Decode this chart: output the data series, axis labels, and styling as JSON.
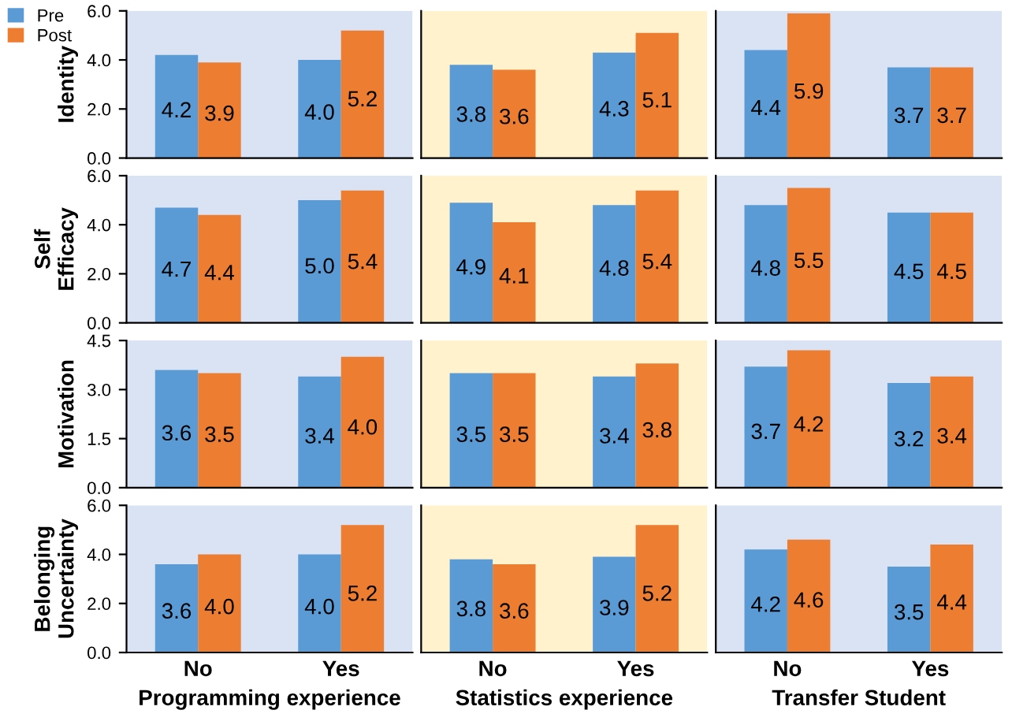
{
  "chart_data": [
    {
      "type": "bar",
      "ylabel": "Identity",
      "categories": [
        "No",
        "Yes"
      ],
      "series": [
        {
          "name": "Pre",
          "color": "#5b9bd5",
          "values": [
            4.2,
            4.0
          ],
          "value_labels": [
            "4.2",
            "4.0"
          ]
        },
        {
          "name": "Post",
          "color": "#ed7d31",
          "values": [
            3.9,
            5.2
          ],
          "value_labels": [
            "3.9",
            "5.2"
          ]
        }
      ],
      "ylim": [
        0,
        6
      ],
      "yticks": [
        {
          "value": 0,
          "label": "0.0"
        },
        {
          "value": 2,
          "label": "2.0"
        },
        {
          "value": 4,
          "label": "4.0"
        },
        {
          "value": 6,
          "label": "6.0"
        }
      ],
      "legend": "top left",
      "tick_labels": "y",
      "bands": [
        {
          "axis": "x",
          "from": "No",
          "to": "Yes",
          "color": "#dae3f3"
        }
      ]
    },
    {
      "type": "bar",
      "categories": [
        "No",
        "Yes"
      ],
      "series": [
        {
          "color": "#5b9bd5",
          "values": [
            3.8,
            4.3
          ],
          "value_labels": [
            "3.8",
            "4.3"
          ]
        },
        {
          "color": "#ed7d31",
          "values": [
            3.6,
            5.1
          ],
          "value_labels": [
            "3.6",
            "5.1"
          ]
        }
      ],
      "ylim": [
        0,
        6
      ],
      "tick_labels": false,
      "bands": [
        {
          "axis": "x",
          "from": "No",
          "to": "Yes",
          "color": "#fff2cc"
        }
      ]
    },
    {
      "type": "bar",
      "categories": [
        "No",
        "Yes"
      ],
      "series": [
        {
          "color": "#5b9bd5",
          "values": [
            4.4,
            3.7
          ],
          "value_labels": [
            "4.4",
            "3.7"
          ]
        },
        {
          "color": "#ed7d31",
          "values": [
            5.9,
            3.7
          ],
          "value_labels": [
            "5.9",
            "3.7"
          ]
        }
      ],
      "ylim": [
        0,
        6
      ],
      "tick_labels": false,
      "bands": [
        {
          "axis": "x",
          "from": "No",
          "to": "Yes",
          "color": "#dae3f3"
        }
      ]
    },
    {
      "type": "bar",
      "ylabel": "Self\nEfficacy",
      "categories": [
        "No",
        "Yes"
      ],
      "series": [
        {
          "color": "#5b9bd5",
          "values": [
            4.7,
            5.0
          ],
          "value_labels": [
            "4.7",
            "5.0"
          ]
        },
        {
          "color": "#ed7d31",
          "values": [
            4.4,
            5.4
          ],
          "value_labels": [
            "4.4",
            "5.4"
          ]
        }
      ],
      "ylim": [
        0,
        6
      ],
      "yticks": [
        {
          "value": 0,
          "label": "0.0"
        },
        {
          "value": 2,
          "label": "2.0"
        },
        {
          "value": 4,
          "label": "4.0"
        },
        {
          "value": 6,
          "label": "6.0"
        }
      ],
      "tick_labels": "y",
      "bands": [
        {
          "axis": "x",
          "from": "No",
          "to": "Yes",
          "color": "#dae3f3"
        }
      ]
    },
    {
      "type": "bar",
      "categories": [
        "No",
        "Yes"
      ],
      "series": [
        {
          "color": "#5b9bd5",
          "values": [
            4.9,
            4.8
          ],
          "value_labels": [
            "4.9",
            "4.8"
          ]
        },
        {
          "color": "#ed7d31",
          "values": [
            4.1,
            5.4
          ],
          "value_labels": [
            "4.1",
            "5.4"
          ]
        }
      ],
      "ylim": [
        0,
        6
      ],
      "tick_labels": false,
      "bands": [
        {
          "axis": "x",
          "from": "No",
          "to": "Yes",
          "color": "#fff2cc"
        }
      ]
    },
    {
      "type": "bar",
      "categories": [
        "No",
        "Yes"
      ],
      "series": [
        {
          "color": "#5b9bd5",
          "values": [
            4.8,
            4.5
          ],
          "value_labels": [
            "4.8",
            "4.5"
          ]
        },
        {
          "color": "#ed7d31",
          "values": [
            5.5,
            4.5
          ],
          "value_labels": [
            "5.5",
            "4.5"
          ]
        }
      ],
      "ylim": [
        0,
        6
      ],
      "tick_labels": false,
      "bands": [
        {
          "axis": "x",
          "from": "No",
          "to": "Yes",
          "color": "#dae3f3"
        }
      ]
    },
    {
      "type": "bar",
      "ylabel": "Motivation",
      "categories": [
        "No",
        "Yes"
      ],
      "series": [
        {
          "color": "#5b9bd5",
          "values": [
            3.6,
            3.4
          ],
          "value_labels": [
            "3.6",
            "3.4"
          ]
        },
        {
          "color": "#ed7d31",
          "values": [
            3.5,
            4.0
          ],
          "value_labels": [
            "3.5",
            "4.0"
          ]
        }
      ],
      "ylim": [
        0,
        4.5
      ],
      "yticks": [
        {
          "value": 0,
          "label": "0.0"
        },
        {
          "value": 1.5,
          "label": "1.5"
        },
        {
          "value": 3,
          "label": "3.0"
        },
        {
          "value": 4.5,
          "label": "4.5"
        }
      ],
      "tick_labels": "y",
      "bands": [
        {
          "axis": "x",
          "from": "No",
          "to": "Yes",
          "color": "#dae3f3"
        }
      ]
    },
    {
      "type": "bar",
      "categories": [
        "No",
        "Yes"
      ],
      "series": [
        {
          "color": "#5b9bd5",
          "values": [
            3.5,
            3.4
          ],
          "value_labels": [
            "3.5",
            "3.4"
          ]
        },
        {
          "color": "#ed7d31",
          "values": [
            3.5,
            3.8
          ],
          "value_labels": [
            "3.5",
            "3.8"
          ]
        }
      ],
      "ylim": [
        0,
        4.5
      ],
      "tick_labels": false,
      "bands": [
        {
          "axis": "x",
          "from": "No",
          "to": "Yes",
          "color": "#fff2cc"
        }
      ]
    },
    {
      "type": "bar",
      "categories": [
        "No",
        "Yes"
      ],
      "series": [
        {
          "color": "#5b9bd5",
          "values": [
            3.7,
            3.2
          ],
          "value_labels": [
            "3.7",
            "3.2"
          ]
        },
        {
          "color": "#ed7d31",
          "values": [
            4.2,
            3.4
          ],
          "value_labels": [
            "4.2",
            "3.4"
          ]
        }
      ],
      "ylim": [
        0,
        4.5
      ],
      "tick_labels": false,
      "bands": [
        {
          "axis": "x",
          "from": "No",
          "to": "Yes",
          "color": "#dae3f3"
        }
      ]
    },
    {
      "type": "bar",
      "ylabel": "Belonging\nUncertainty",
      "xlabel": "Programming experience",
      "categories": [
        "No",
        "Yes"
      ],
      "series": [
        {
          "color": "#5b9bd5",
          "values": [
            3.6,
            4.0
          ],
          "value_labels": [
            "3.6",
            "4.0"
          ]
        },
        {
          "color": "#ed7d31",
          "values": [
            4.0,
            5.2
          ],
          "value_labels": [
            "4.0",
            "5.2"
          ]
        }
      ],
      "ylim": [
        0,
        6
      ],
      "yticks": [
        {
          "value": 0,
          "label": "0.0"
        },
        {
          "value": 2,
          "label": "2.0"
        },
        {
          "value": 4,
          "label": "4.0"
        },
        {
          "value": 6,
          "label": "6.0"
        }
      ],
      "bands": [
        {
          "axis": "x",
          "from": "No",
          "to": "Yes",
          "color": "#dae3f3"
        }
      ]
    },
    {
      "type": "bar",
      "xlabel": "Statistics experience",
      "categories": [
        "No",
        "Yes"
      ],
      "series": [
        {
          "color": "#5b9bd5",
          "values": [
            3.8,
            3.9
          ],
          "value_labels": [
            "3.8",
            "3.9"
          ]
        },
        {
          "color": "#ed7d31",
          "values": [
            3.6,
            5.2
          ],
          "value_labels": [
            "3.6",
            "5.2"
          ]
        }
      ],
      "ylim": [
        0,
        6
      ],
      "tick_labels": "x",
      "bands": [
        {
          "axis": "x",
          "from": "No",
          "to": "Yes",
          "color": "#fff2cc"
        }
      ]
    },
    {
      "type": "bar",
      "xlabel": "Transfer Student",
      "categories": [
        "No",
        "Yes"
      ],
      "series": [
        {
          "color": "#5b9bd5",
          "values": [
            4.2,
            3.5
          ],
          "value_labels": [
            "4.2",
            "3.5"
          ]
        },
        {
          "color": "#ed7d31",
          "values": [
            4.6,
            4.4
          ],
          "value_labels": [
            "4.6",
            "4.4"
          ]
        }
      ],
      "ylim": [
        0,
        6
      ],
      "tick_labels": "x",
      "bands": [
        {
          "axis": "x",
          "from": "No",
          "to": "Yes",
          "color": "#dae3f3"
        }
      ]
    }
  ]
}
